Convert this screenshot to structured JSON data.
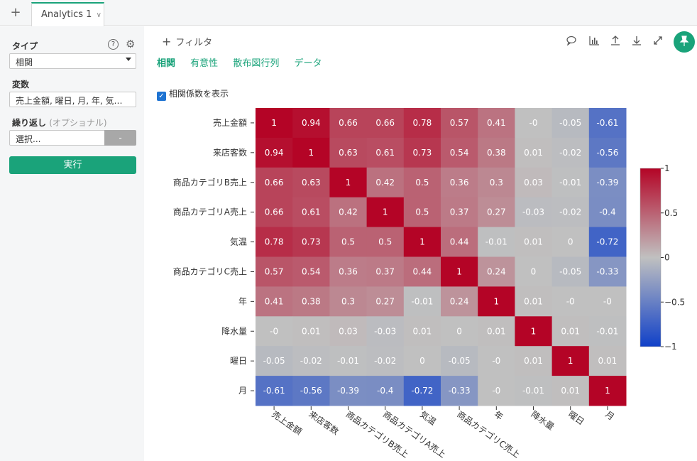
{
  "tabs": {
    "add_label": "+",
    "active_label": "Analytics 1"
  },
  "left_panel": {
    "type_label": "タイプ",
    "type_value": "相関",
    "variables_label": "変数",
    "variables_value": "売上金額, 曜日, 月, 年, 気温...",
    "repeat_label": "繰り返し",
    "repeat_optional": "(オプショナル)",
    "repeat_placeholder": "選択...",
    "minus_label": "-",
    "run_label": "実行"
  },
  "toolbar": {
    "filter_label": "フィルタ",
    "view_tabs": [
      "相関",
      "有意性",
      "散布図行列",
      "データ"
    ],
    "icons": [
      "comment-icon",
      "chart-icon",
      "upload-icon",
      "download-icon",
      "expand-icon",
      "pin-icon"
    ]
  },
  "show_coefficients_label": "相関係数を表示",
  "chart_data": {
    "type": "heatmap",
    "rows": [
      "売上金額",
      "来店客数",
      "商品カテゴリB売上",
      "商品カテゴリA売上",
      "気温",
      "商品カテゴリC売上",
      "年",
      "降水量",
      "曜日",
      "月"
    ],
    "columns": [
      "売上金額",
      "来店客数",
      "商品カテゴリB売上",
      "商品カテゴリA売上",
      "気温",
      "商品カテゴリC売上",
      "年",
      "降水量",
      "曜日",
      "月"
    ],
    "values": [
      [
        1,
        0.94,
        0.66,
        0.66,
        0.78,
        0.57,
        0.41,
        "-0",
        -0.05,
        -0.61
      ],
      [
        0.94,
        1,
        0.63,
        0.61,
        0.73,
        0.54,
        0.38,
        0.01,
        -0.02,
        -0.56
      ],
      [
        0.66,
        0.63,
        1,
        0.42,
        0.5,
        0.36,
        0.3,
        0.03,
        -0.01,
        -0.39
      ],
      [
        0.66,
        0.61,
        0.42,
        1,
        0.5,
        0.37,
        0.27,
        -0.03,
        -0.02,
        -0.4
      ],
      [
        0.78,
        0.73,
        0.5,
        0.5,
        1,
        0.44,
        -0.01,
        0.01,
        0,
        -0.72
      ],
      [
        0.57,
        0.54,
        0.36,
        0.37,
        0.44,
        1,
        0.24,
        0,
        -0.05,
        -0.33
      ],
      [
        0.41,
        0.38,
        0.3,
        0.27,
        -0.01,
        0.24,
        1,
        0.01,
        "-0",
        "-0"
      ],
      [
        "-0",
        0.01,
        0.03,
        -0.03,
        0.01,
        0,
        0.01,
        1,
        0.01,
        -0.01
      ],
      [
        -0.05,
        -0.02,
        -0.01,
        -0.02,
        0,
        -0.05,
        "-0",
        0.01,
        1,
        0.01
      ],
      [
        -0.61,
        -0.56,
        -0.39,
        -0.4,
        -0.72,
        -0.33,
        "-0",
        -0.01,
        0.01,
        1
      ]
    ],
    "colorbar": {
      "range": [
        -1,
        1
      ],
      "ticks": [
        "1",
        "0.5",
        "0",
        "−0.5",
        "−1"
      ],
      "colors": [
        "#b40426",
        "#c0c0c0",
        "#1040c8"
      ]
    }
  }
}
